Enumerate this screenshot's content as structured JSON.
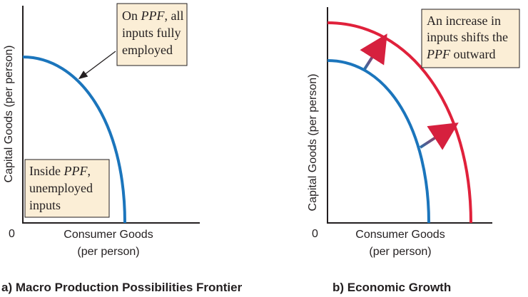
{
  "panel_a": {
    "caption": "a) Macro Production Possibilities Frontier",
    "y_axis_label": "Capital Goods (per person)",
    "x_axis_label_line1": "Consumer Goods",
    "x_axis_label_line2": "(per person)",
    "origin_label": "0",
    "note_on_ppf": {
      "line1_pre": "On ",
      "line1_italic": "PPF",
      "line1_post": ", all",
      "line2": "inputs fully",
      "line3": "employed"
    },
    "note_inside_ppf": {
      "line1_pre": "Inside ",
      "line1_italic": "PPF",
      "line1_post": ",",
      "line2": "unemployed",
      "line3": "inputs"
    },
    "curve_color": "#1b75bc"
  },
  "panel_b": {
    "caption": "b) Economic Growth",
    "y_axis_label": "Capital Goods (per person)",
    "x_axis_label_line1": "Consumer Goods",
    "x_axis_label_line2": "(per person)",
    "origin_label": "0",
    "note_shift": {
      "line1": "An increase in",
      "line2": "inputs shifts the",
      "line3_italic": "PPF",
      "line3_post": " outward"
    },
    "inner_curve_color": "#1b75bc",
    "outer_curve_color": "#e0213b"
  }
}
